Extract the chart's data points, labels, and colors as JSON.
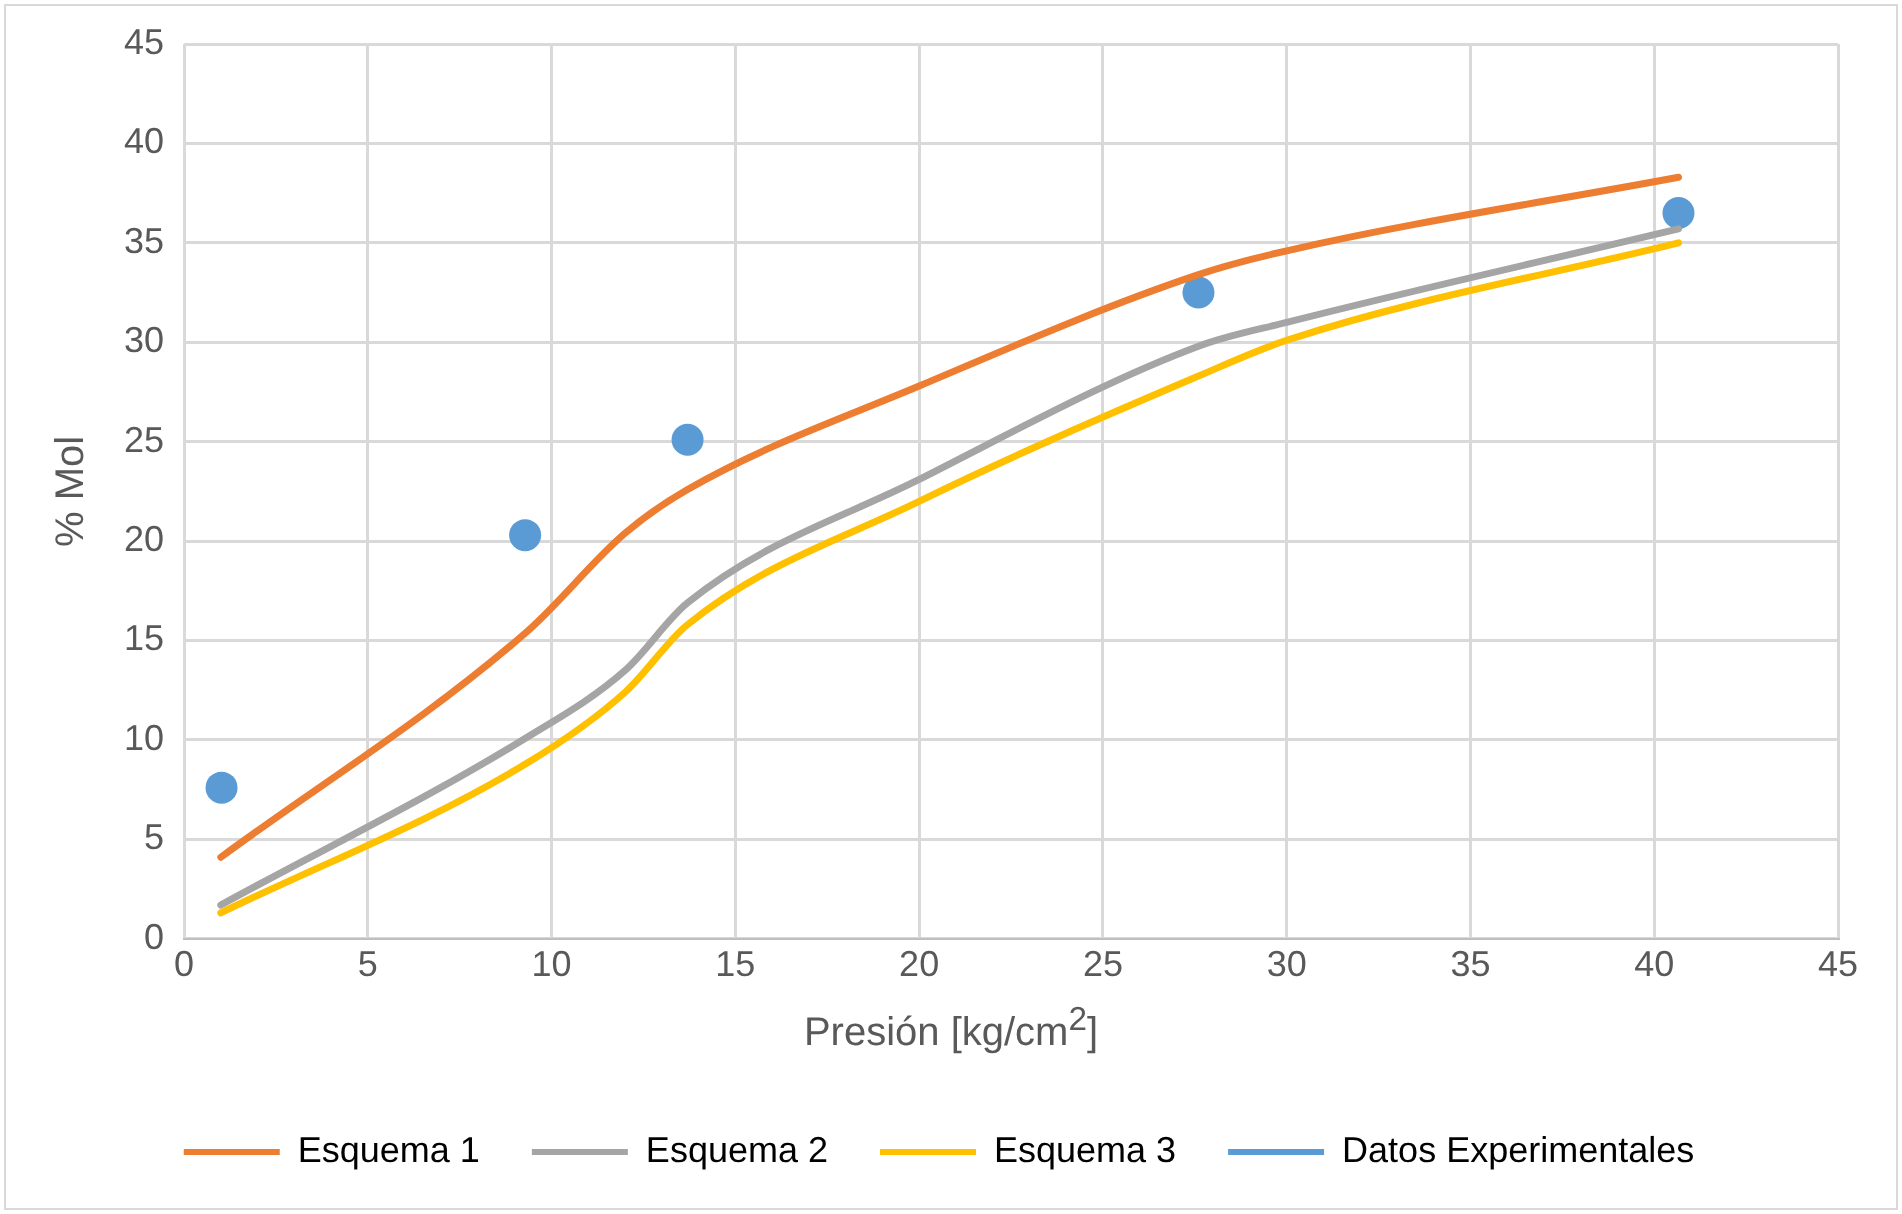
{
  "chart_data": {
    "type": "line",
    "xlabel": "Presión [kg/cm$^{2}$]",
    "ylabel": "% Mol",
    "xlim": [
      0,
      45
    ],
    "xticks": [
      0,
      5,
      10,
      15,
      20,
      25,
      30,
      35,
      40,
      45
    ],
    "ylim": [
      0,
      45
    ],
    "yticks": [
      0,
      5,
      10,
      15,
      20,
      25,
      30,
      35,
      40,
      45
    ],
    "grid": true,
    "legend": "bottom",
    "marker": "none",
    "line_style": "solid",
    "series": [
      {
        "name": "Esquema 1",
        "color": "#ed7d31",
        "x": [
          1,
          9.3,
          12,
          13.7,
          20,
          27.6,
          30,
          40.66
        ],
        "values": [
          4.1,
          15.4,
          20.4,
          22.6,
          27.8,
          33.4,
          34.6,
          38.3
        ]
      },
      {
        "name": "Esquema 2",
        "color": "#a5a5a5",
        "x": [
          1,
          9.3,
          12,
          13.7,
          20,
          27.6,
          30,
          40.66
        ],
        "values": [
          1.7,
          10.1,
          13.5,
          16.9,
          23.1,
          29.8,
          31,
          35.7
        ]
      },
      {
        "name": "Esquema 3",
        "color": "#ffc000",
        "x": [
          1,
          9.3,
          12,
          13.7,
          20,
          27.6,
          30,
          40.66
        ],
        "values": [
          1.3,
          8.8,
          12.4,
          15.8,
          22,
          28.3,
          30.1,
          35
        ]
      },
      {
        "name": "Datos Experimentales",
        "type": "scatter",
        "marker": "circle",
        "color": "#5b9bd5",
        "x": [
          1.02,
          9.28,
          13.7,
          27.6,
          40.66
        ],
        "values": [
          7.6,
          20.3,
          25.1,
          32.5,
          36.5
        ]
      }
    ]
  }
}
